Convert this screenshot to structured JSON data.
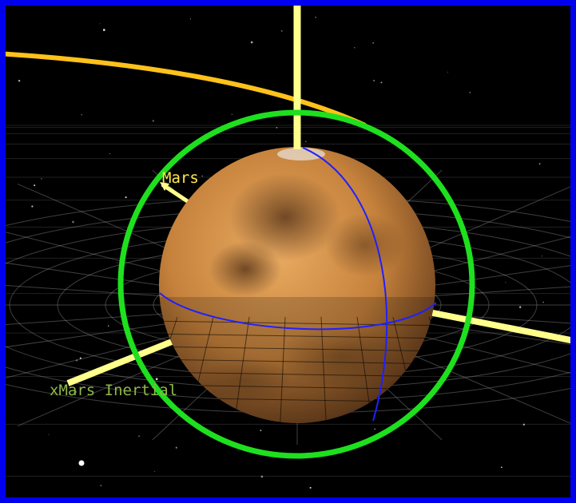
{
  "viewport": {
    "border_color": "#0000ee",
    "background": "#000000"
  },
  "scene": {
    "body_name": "Mars",
    "frame_axis_label": "xMars Inertial",
    "colors": {
      "orbit": "#ffc21a",
      "axis": "#ffff8c",
      "ring": "#1ee01e",
      "grid": "#b4b4b4",
      "meridian": "#2020ff",
      "mars_light": "#e9ab62",
      "mars_mid": "#c6823c",
      "mars_dark": "#6e4320",
      "axis_label": "#8eb84a",
      "body_label": "#ffe94a"
    }
  }
}
